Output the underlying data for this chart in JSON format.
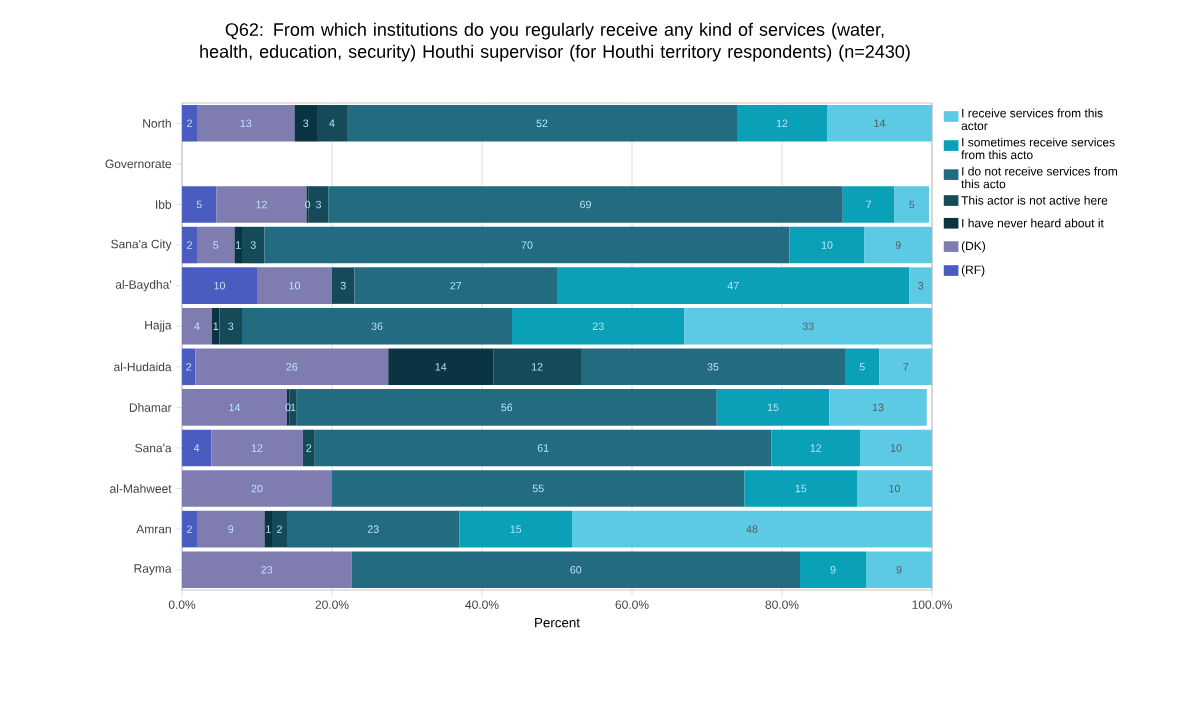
{
  "chart_data": {
    "type": "bar",
    "orientation": "horizontal",
    "stacked": true,
    "title": "Q62: From which institutions do you regularly receive any kind of services (water, health, education, security) Houthi supervisor (for Houthi territory respondents) (n=2430)",
    "xlabel": "Percent",
    "categories": [
      "North",
      "Governorate",
      "Ibb",
      "Sana'a City",
      "al-Baydha'",
      "Hajja",
      "al-Hudaida",
      "Dhamar",
      "Sana'a",
      "al-Mahweet",
      "Amran",
      "Rayma"
    ],
    "series": [
      {
        "name": "(RF)",
        "color": "#4a5cc0",
        "values": [
          2,
          null,
          4.6,
          2,
          10,
          null,
          1.8,
          null,
          3.9,
          null,
          2,
          null
        ],
        "value_labels": [
          "2",
          null,
          "5",
          "2",
          "10",
          null,
          "2",
          null,
          "4",
          null,
          "2",
          null
        ]
      },
      {
        "name": "(DK)",
        "color": "#7f7cb0",
        "values": [
          13,
          null,
          12,
          5,
          10,
          4,
          25.7,
          14,
          12.2,
          20,
          9,
          22.6
        ],
        "value_labels": [
          "13",
          null,
          "12",
          "5",
          "10",
          "4",
          "26",
          "14",
          "12",
          "20",
          "9",
          "23"
        ]
      },
      {
        "name": "I have never heard about it",
        "color": "#0b3443",
        "values": [
          3,
          null,
          0.3,
          1,
          null,
          1,
          14,
          0.3,
          null,
          null,
          1,
          null
        ],
        "value_labels": [
          "3",
          null,
          "0",
          "1",
          null,
          "1",
          "14",
          "0",
          null,
          null,
          "1",
          null
        ]
      },
      {
        "name": "This actor is not active here",
        "color": "#154a58",
        "values": [
          4,
          null,
          2.6,
          3,
          3,
          3,
          11.7,
          1,
          1.6,
          null,
          2,
          null
        ],
        "value_labels": [
          "4",
          null,
          "3",
          "3",
          "3",
          "3",
          "12",
          "1",
          "2",
          null,
          "2",
          null
        ]
      },
      {
        "name": "I do not receive services from this acto",
        "color": "#226b80",
        "values": [
          52,
          null,
          68.6,
          70,
          27,
          36,
          35.2,
          56,
          60.9,
          55,
          23,
          59.8
        ],
        "value_labels": [
          "52",
          null,
          "69",
          "70",
          "27",
          "36",
          "35",
          "56",
          "61",
          "55",
          "23",
          "60"
        ]
      },
      {
        "name": "I sometimes receive services from this acto",
        "color": "#0aa0b8",
        "values": [
          12,
          null,
          6.9,
          10,
          47,
          23,
          4.6,
          15,
          11.8,
          15,
          15,
          8.8
        ],
        "value_labels": [
          "12",
          null,
          "7",
          "10",
          "47",
          "23",
          "5",
          "15",
          "12",
          "15",
          "15",
          "9"
        ]
      },
      {
        "name": "I receive services from this actor",
        "color": "#5cc9e5",
        "values": [
          14,
          null,
          4.6,
          9,
          3,
          33,
          7,
          13,
          9.6,
          10,
          48,
          8.8
        ],
        "value_labels": [
          "14",
          null,
          "5",
          "9",
          "3",
          "33",
          "7",
          "13",
          "10",
          "10",
          "48",
          "9"
        ]
      }
    ],
    "xlim": [
      0,
      100
    ],
    "xticks": [
      {
        "value": 0,
        "label": "0.0%"
      },
      {
        "value": 20,
        "label": "20.0%"
      },
      {
        "value": 40,
        "label": "40.0%"
      },
      {
        "value": 60,
        "label": "60.0%"
      },
      {
        "value": 80,
        "label": "80.0%"
      },
      {
        "value": 100,
        "label": "100.0%"
      }
    ],
    "grid": "x",
    "legend": "right"
  }
}
